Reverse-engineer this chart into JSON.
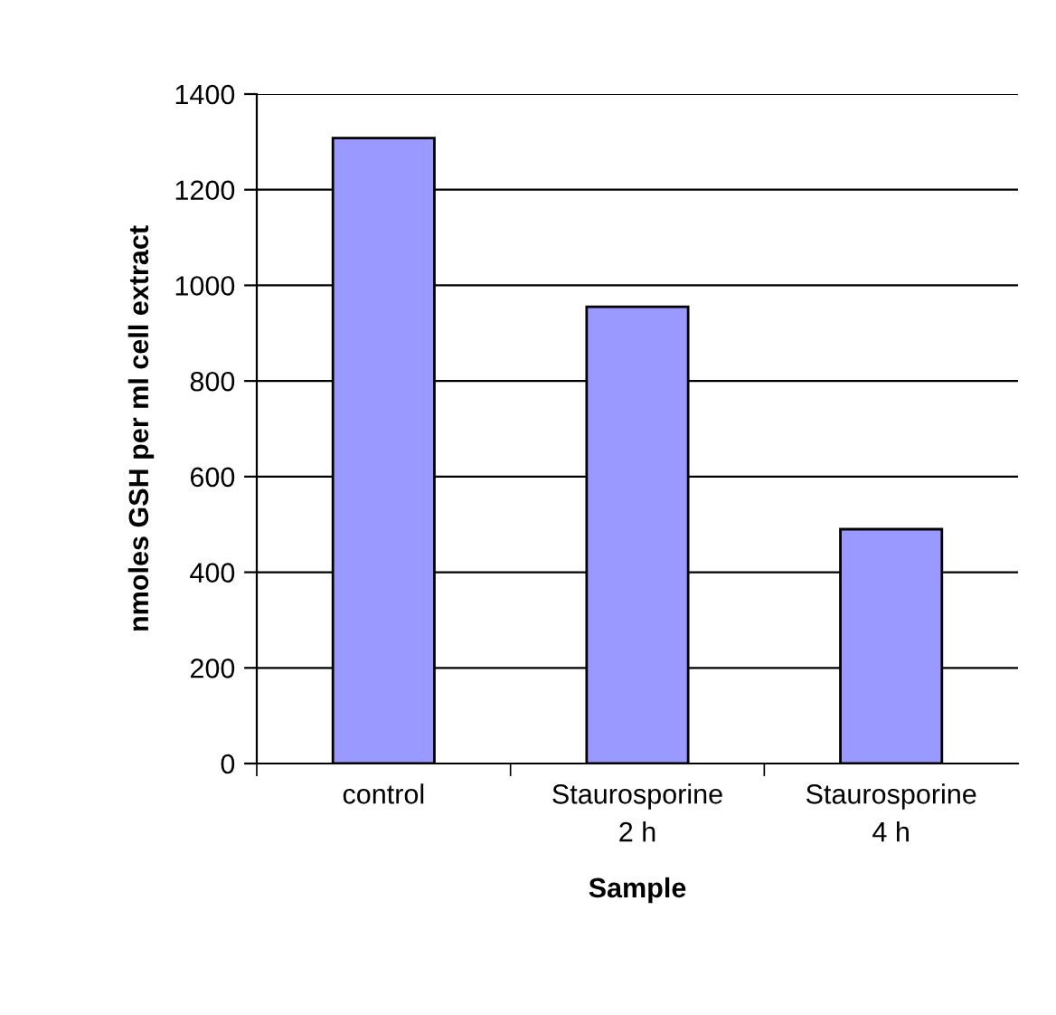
{
  "chart_data": {
    "type": "bar",
    "xlabel": "Sample",
    "ylabel": "nmoles GSH per ml cell extract",
    "categories": [
      "control",
      "Staurosporine\n2 h",
      "Staurosporine\n4 h"
    ],
    "values": [
      1308,
      955,
      490
    ],
    "color": "#9999ff",
    "ylim": [
      0,
      1400
    ],
    "yticks": [
      0,
      200,
      400,
      600,
      800,
      1000,
      1200,
      1400
    ],
    "grid": "y",
    "legend": false
  }
}
